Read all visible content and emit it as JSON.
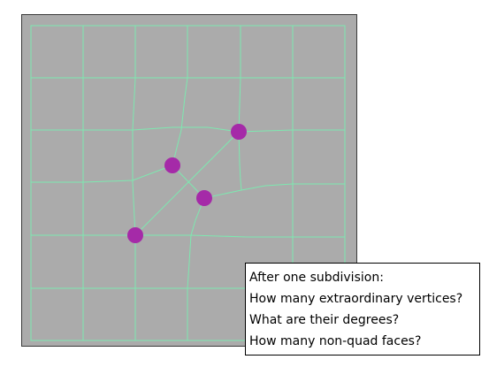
{
  "colors": {
    "panel_background": "#ababab",
    "grid_line": "#7ee8b0",
    "vertex": "#a52aa8",
    "box_background": "#ffffff",
    "text": "#000000"
  },
  "question_box": {
    "lines": [
      "After one subdivision:",
      "How many extraordinary vertices?",
      "What are their degrees?",
      "How many non-quad faces?"
    ]
  },
  "mesh": {
    "highlighted_vertex_count": 4
  }
}
